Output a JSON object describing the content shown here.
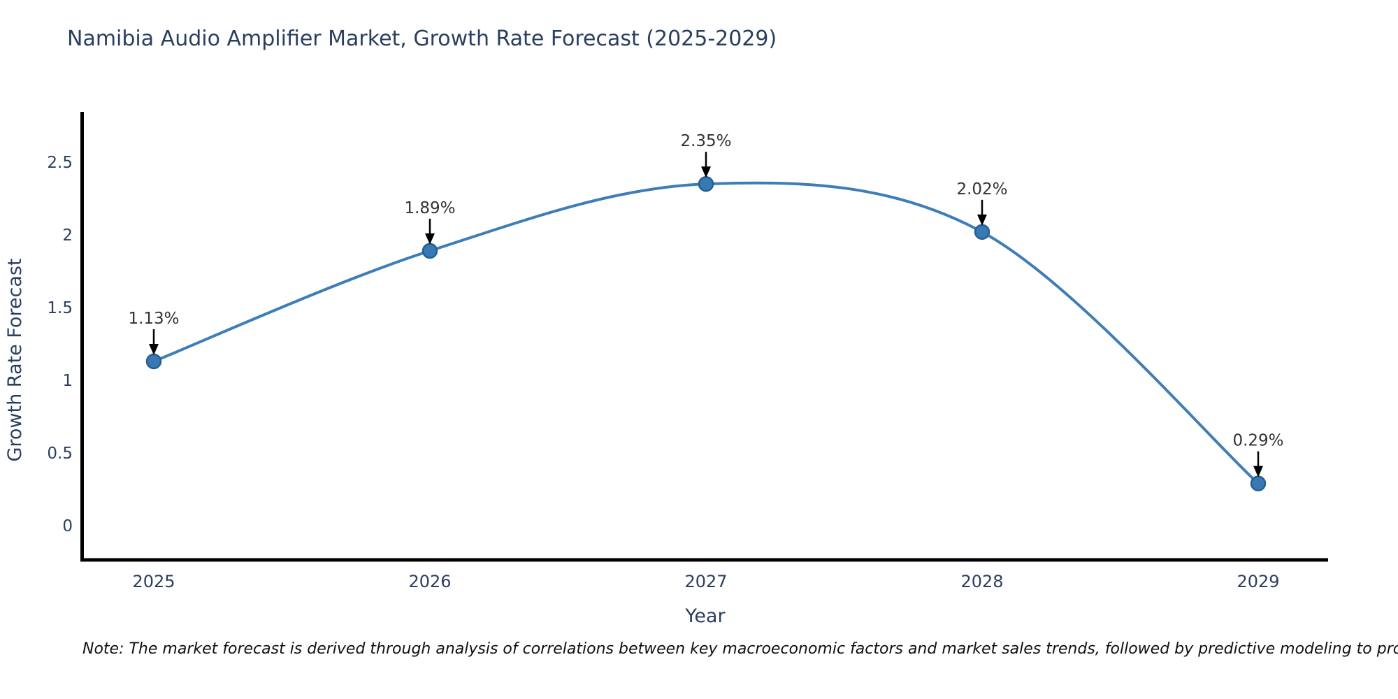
{
  "title": "Namibia Audio Amplifier Market, Growth Rate Forecast (2025-2029)",
  "note": "Note: The market forecast is derived through analysis of correlations between key macroeconomic factors and market sales trends, followed by predictive modeling to project future sales",
  "chart_data": {
    "type": "line",
    "title": "Namibia Audio Amplifier Market, Growth Rate Forecast (2025-2029)",
    "categories": [
      "2025",
      "2026",
      "2027",
      "2028",
      "2029"
    ],
    "series": [
      {
        "name": "Growth Rate Forecast",
        "values": [
          1.13,
          1.89,
          2.35,
          2.02,
          0.29
        ]
      }
    ],
    "data_labels": [
      "1.13%",
      "1.89%",
      "2.35%",
      "2.02%",
      "0.29%"
    ],
    "xlabel": "Year",
    "ylabel": "Growth Rate Forecast",
    "ytick_labels": [
      "0",
      "0.5",
      "1",
      "1.5",
      "2",
      "2.5"
    ],
    "yticks": [
      0,
      0.5,
      1,
      1.5,
      2,
      2.5
    ],
    "ylim": [
      -0.24,
      2.85
    ],
    "grid": false,
    "legend": "none",
    "line_style": "smooth",
    "marker": "circle",
    "annotation_arrows": true,
    "colors": {
      "line": "#3d7eb8",
      "marker_fill": "#3878b4",
      "marker_edge": "#26608f",
      "annotation_text": "#333333",
      "axis_text": "#2a3f5f",
      "title_text": "#2a3f5f",
      "spine": "#000000",
      "arrow": "#000000",
      "note_text": "#111111",
      "background": "#ffffff"
    }
  }
}
